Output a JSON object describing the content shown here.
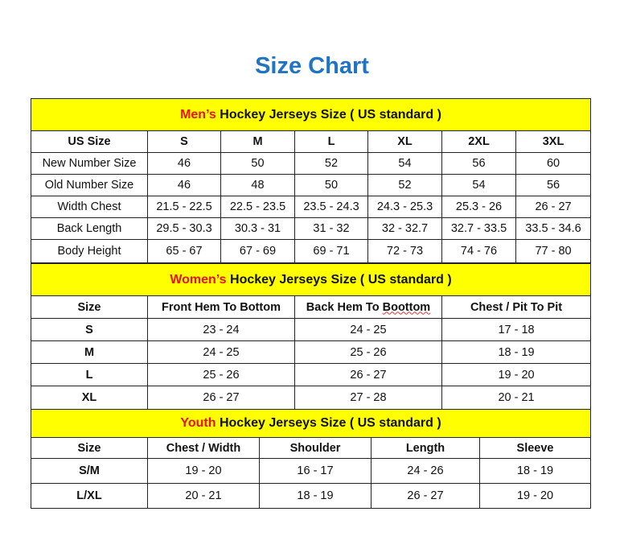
{
  "title": "Size Chart",
  "colors": {
    "title": "#1f74c4",
    "header_bg": "#ffff00",
    "accent_red": "#e8101a"
  },
  "men": {
    "heading_red": "Men’s",
    "heading_rest": " Hockey Jerseys Size ( US standard )",
    "columns": [
      "US Size",
      "S",
      "M",
      "L",
      "XL",
      "2XL",
      "3XL"
    ],
    "rows": [
      [
        "New Number Size",
        "46",
        "50",
        "52",
        "54",
        "56",
        "60"
      ],
      [
        "Old Number Size",
        "46",
        "48",
        "50",
        "52",
        "54",
        "56"
      ],
      [
        "Width Chest",
        "21.5 - 22.5",
        "22.5 - 23.5",
        "23.5 - 24.3",
        "24.3 - 25.3",
        "25.3 - 26",
        "26 - 27"
      ],
      [
        "Back Length",
        "29.5 - 30.3",
        "30.3 - 31",
        "31 - 32",
        "32 - 32.7",
        "32.7 - 33.5",
        "33.5 - 34.6"
      ],
      [
        "Body Height",
        "65 - 67",
        "67 - 69",
        "69 - 71",
        "72 - 73",
        "74 - 76",
        "77 - 80"
      ]
    ]
  },
  "women": {
    "heading_red": "Women’s",
    "heading_rest": " Hockey Jerseys Size ( US standard )",
    "columns": [
      "Size",
      "Front Hem To Bottom",
      "Back Hem To ",
      "Chest / Pit To Pit"
    ],
    "misspelled_word": "Boottom",
    "rows": [
      [
        "S",
        "23 - 24",
        "24 - 25",
        "17 - 18"
      ],
      [
        "M",
        "24 - 25",
        "25 - 26",
        "18 - 19"
      ],
      [
        "L",
        "25 - 26",
        "26 - 27",
        "19 - 20"
      ],
      [
        "XL",
        "26 - 27",
        "27 - 28",
        "20 - 21"
      ]
    ]
  },
  "youth": {
    "heading_red": "Youth",
    "heading_rest": " Hockey Jerseys Size ( US standard )",
    "columns": [
      "Size",
      "Chest / Width",
      "Shoulder",
      "Length",
      "Sleeve"
    ],
    "rows": [
      [
        "S/M",
        "19 - 20",
        "16 - 17",
        "24 - 26",
        "18 - 19"
      ],
      [
        "L/XL",
        "20 - 21",
        "18 - 19",
        "26 - 27",
        "19 - 20"
      ]
    ]
  }
}
